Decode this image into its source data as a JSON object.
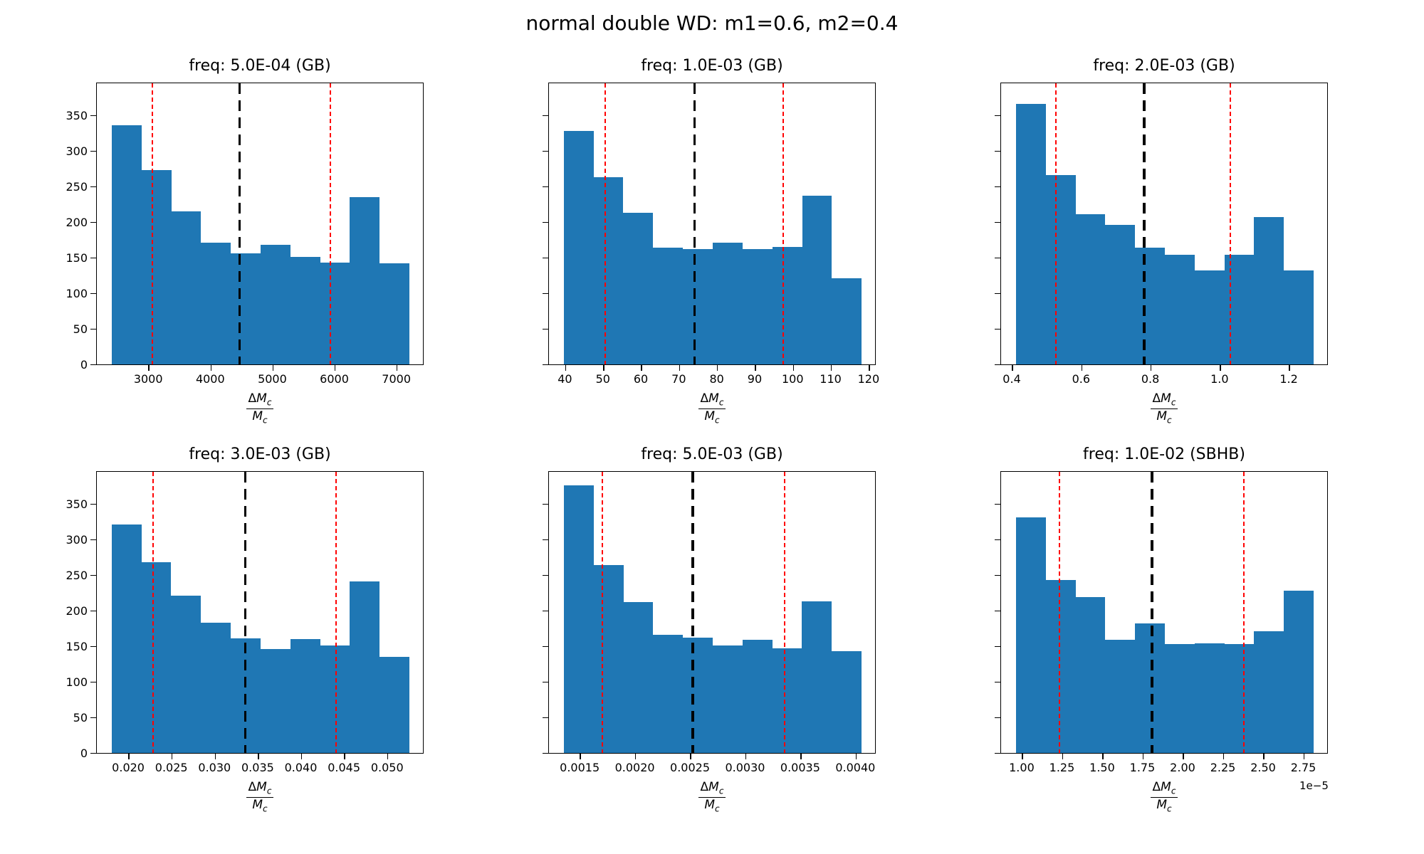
{
  "figure": {
    "title": "normal double WD: m1=0.6, m2=0.4"
  },
  "colors": {
    "bar": "#1f77b4",
    "red_line": "#ff0000",
    "black_line": "#000000",
    "background": "#ffffff"
  },
  "y_axis": {
    "ticks": [
      0,
      50,
      100,
      150,
      200,
      250,
      300,
      350
    ],
    "tick_labels": [
      "0",
      "50",
      "100",
      "150",
      "200",
      "250",
      "300",
      "350"
    ],
    "ymax": 397
  },
  "x_axis_label": {
    "numerator_delta": "Δ",
    "numerator_m": "M",
    "subscript": "c",
    "denominator_m": "M"
  },
  "chart_data": [
    {
      "type": "bar",
      "title": "freq: 5.0E-04 (GB)",
      "bin_start": 2400,
      "bin_width": 480,
      "values": [
        338,
        274,
        216,
        172,
        157,
        169,
        152,
        144,
        236,
        143
      ],
      "xlim": [
        2160,
        7440
      ],
      "xticks": [
        3000,
        4000,
        5000,
        6000,
        7000
      ],
      "xtick_labels": [
        "3000",
        "4000",
        "5000",
        "6000",
        "7000"
      ],
      "red_lines": [
        3050,
        5920
      ],
      "black_line": 4460,
      "show_ytick_labels": true,
      "offset_text": "",
      "legend": "none",
      "grid": false
    },
    {
      "type": "bar",
      "title": "freq: 1.0E-03 (GB)",
      "bin_start": 39.5,
      "bin_width": 7.85,
      "values": [
        330,
        264,
        214,
        165,
        163,
        172,
        163,
        166,
        238,
        122
      ],
      "xlim": [
        35.6,
        121.9
      ],
      "xticks": [
        40,
        50,
        60,
        70,
        80,
        90,
        100,
        110,
        120
      ],
      "xtick_labels": [
        "40",
        "50",
        "60",
        "70",
        "80",
        "90",
        "100",
        "110",
        "120"
      ],
      "red_lines": [
        50.4,
        97.3
      ],
      "black_line": 74,
      "show_ytick_labels": false,
      "offset_text": "",
      "legend": "none",
      "grid": false
    },
    {
      "type": "bar",
      "title": "freq: 2.0E-03 (GB)",
      "bin_start": 0.41,
      "bin_width": 0.086,
      "values": [
        368,
        267,
        212,
        197,
        165,
        155,
        133,
        155,
        208,
        133
      ],
      "xlim": [
        0.367,
        1.313
      ],
      "xticks": [
        0.4,
        0.6,
        0.8,
        1.0,
        1.2
      ],
      "xtick_labels": [
        "0.4",
        "0.6",
        "0.8",
        "1.0",
        "1.2"
      ],
      "red_lines": [
        0.525,
        1.03
      ],
      "black_line": 0.78,
      "show_ytick_labels": false,
      "offset_text": "",
      "legend": "none",
      "grid": false
    },
    {
      "type": "bar",
      "title": "freq: 3.0E-03 (GB)",
      "bin_start": 0.018,
      "bin_width": 0.00345,
      "values": [
        323,
        269,
        222,
        184,
        162,
        147,
        161,
        152,
        242,
        136
      ],
      "xlim": [
        0.01628,
        0.05423
      ],
      "xticks": [
        0.02,
        0.025,
        0.03,
        0.035,
        0.04,
        0.045,
        0.05
      ],
      "xtick_labels": [
        "0.020",
        "0.025",
        "0.030",
        "0.035",
        "0.040",
        "0.045",
        "0.050"
      ],
      "red_lines": [
        0.0228,
        0.044
      ],
      "black_line": 0.0335,
      "show_ytick_labels": true,
      "offset_text": "",
      "legend": "none",
      "grid": false
    },
    {
      "type": "bar",
      "title": "freq: 5.0E-03 (GB)",
      "bin_start": 0.00135,
      "bin_width": 0.00027,
      "values": [
        378,
        265,
        213,
        167,
        163,
        152,
        160,
        148,
        214,
        144
      ],
      "xlim": [
        0.001215,
        0.004185
      ],
      "xticks": [
        0.0015,
        0.002,
        0.0025,
        0.003,
        0.0035,
        0.004
      ],
      "xtick_labels": [
        "0.0015",
        "0.0020",
        "0.0025",
        "0.0030",
        "0.0035",
        "0.0040"
      ],
      "red_lines": [
        0.0017,
        0.00335
      ],
      "black_line": 0.00252,
      "show_ytick_labels": false,
      "offset_text": "",
      "legend": "none",
      "grid": false
    },
    {
      "type": "bar",
      "title": "freq: 1.0E-02 (SBHB)",
      "bin_start": 0.96,
      "bin_width": 0.185,
      "values": [
        333,
        244,
        220,
        160,
        183,
        154,
        155,
        154,
        172,
        229
      ],
      "xlim": [
        0.8675,
        2.9025
      ],
      "xticks": [
        1.0,
        1.25,
        1.5,
        1.75,
        2.0,
        2.25,
        2.5,
        2.75
      ],
      "xtick_labels": [
        "1.00",
        "1.25",
        "1.50",
        "1.75",
        "2.00",
        "2.25",
        "2.50",
        "2.75"
      ],
      "red_lines": [
        1.23,
        2.375
      ],
      "black_line": 1.805,
      "show_ytick_labels": false,
      "offset_text": "1e−5",
      "legend": "none",
      "grid": false
    }
  ]
}
